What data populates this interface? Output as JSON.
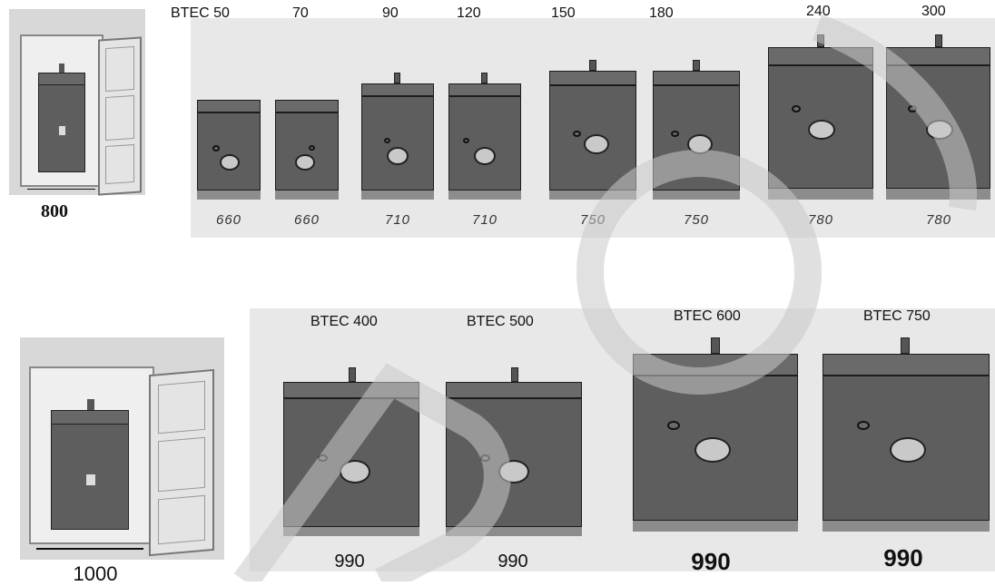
{
  "top_row": {
    "door_width": "800",
    "models": [
      {
        "label": "BTEC 50",
        "width": "660"
      },
      {
        "label": "70",
        "width": "660"
      },
      {
        "label": "90",
        "width": "710"
      },
      {
        "label": "120",
        "width": "710"
      },
      {
        "label": "150",
        "width": "750"
      },
      {
        "label": "180",
        "width": "750"
      },
      {
        "label": "240",
        "width": "780"
      },
      {
        "label": "300",
        "width": "780"
      }
    ]
  },
  "bottom_row": {
    "door_width": "1000",
    "models": [
      {
        "label": "BTEC 400",
        "width": "990"
      },
      {
        "label": "BTEC 500",
        "width": "990"
      },
      {
        "label": "BTEC 600",
        "width": "990"
      },
      {
        "label": "BTEC 750",
        "width": "990"
      }
    ]
  },
  "colors": {
    "cabinet": "#5e5e5e",
    "panel_bg": "#e8e8e8",
    "watermark": "#d4d4d4"
  }
}
